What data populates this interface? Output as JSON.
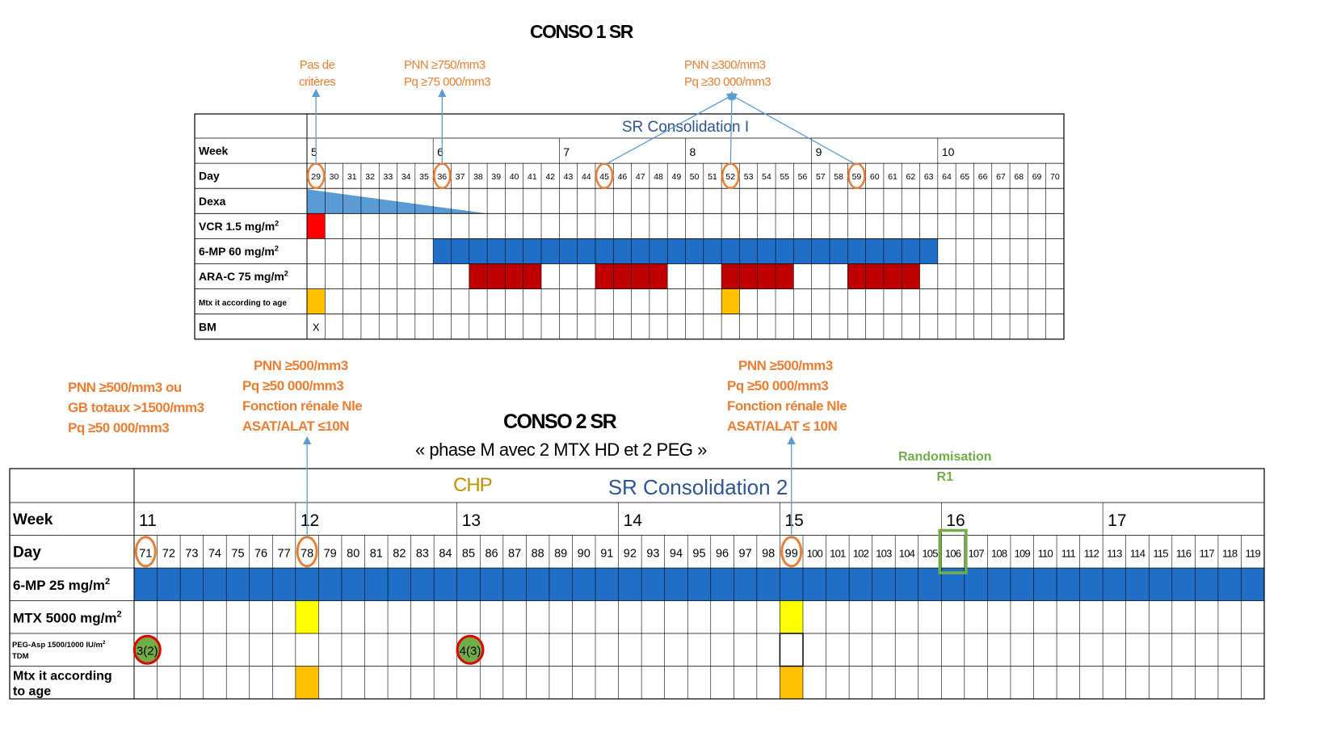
{
  "conso1": {
    "title": "CONSO 1 SR",
    "phase_label": "SR Consolidation I",
    "notes": [
      {
        "lines": [
          "Pas de",
          "critères"
        ]
      },
      {
        "lines": [
          "PNN ≥750/mm3",
          "Pq ≥75 000/mm3"
        ]
      },
      {
        "lines": [
          "PNN ≥300/mm3",
          "Pq ≥30 000/mm3"
        ]
      }
    ],
    "row_labels": [
      "Week",
      "Day",
      "Dexa",
      "VCR 1.5 mg/m²",
      "6-MP 60 mg/m²",
      "ARA-C 75 mg/m²",
      "Mtx it according to age",
      "BM"
    ],
    "weeks": [
      {
        "label": "5",
        "day": 29
      },
      {
        "label": "6",
        "day": 36
      },
      {
        "label": "7",
        "day": 43
      },
      {
        "label": "8",
        "day": 50
      },
      {
        "label": "9",
        "day": 57
      },
      {
        "label": "10",
        "day": 64
      }
    ],
    "day_start": 29,
    "day_end": 70,
    "circled_days": [
      29,
      36,
      45,
      52,
      59
    ],
    "bm_mark": "X",
    "bm_day": 29,
    "colors": {
      "dexa": "#5B9BD5",
      "vcr": "#FF0000",
      "mp": "#1F6FC8",
      "arac": "#C00000",
      "mtx": "#FFC000",
      "circle": "#ED7D31",
      "arrow": "#5B9BD5",
      "phase": "#2E5496"
    },
    "bars": {
      "dexa_days": [
        29,
        38
      ],
      "vcr_days": [
        29
      ],
      "mp_days": [
        36,
        63
      ],
      "arac_days": [
        38,
        39,
        40,
        41,
        45,
        46,
        47,
        48,
        52,
        53,
        54,
        55,
        59,
        60,
        61,
        62
      ],
      "mtx_days": [
        29,
        52
      ]
    }
  },
  "conso2": {
    "title": "CONSO 2 SR",
    "subtitle": "« phase M avec 2 MTX HD et 2 PEG »",
    "chp": "CHP",
    "phase_label": "SR Consolidation 2",
    "notes": [
      {
        "lines": [
          "PNN ≥500/mm3 ou",
          "GB totaux >1500/mm3",
          "Pq ≥50 000/mm3"
        ]
      },
      {
        "lines": [
          "PNN ≥500/mm3",
          "Pq ≥50 000/mm3",
          "Fonction rénale Nle",
          "ASAT/ALAT ≤10N"
        ]
      },
      {
        "lines": [
          "PNN ≥500/mm3",
          "Pq ≥50 000/mm3",
          "Fonction rénale Nle",
          "ASAT/ALAT ≤ 10N"
        ]
      }
    ],
    "randomisation": [
      "Randomisation",
      "R1"
    ],
    "row_labels": [
      "Week",
      "Day",
      "6-MP 25 mg/m²",
      "MTX 5000 mg/m²",
      "PEG-Asp 1500/1000 IU/m² TDM",
      "Mtx it according to age"
    ],
    "weeks": [
      {
        "label": "11",
        "day": 71
      },
      {
        "label": "12",
        "day": 78
      },
      {
        "label": "13",
        "day": 85
      },
      {
        "label": "14",
        "day": 92
      },
      {
        "label": "15",
        "day": 99
      },
      {
        "label": "16",
        "day": 106
      },
      {
        "label": "17",
        "day": 113
      }
    ],
    "day_start": 71,
    "day_end": 119,
    "circled_days": [
      71,
      78,
      99
    ],
    "boxed_day": 106,
    "peg_marks": [
      {
        "day": 71,
        "text": "3(2)"
      },
      {
        "day": 85,
        "text": "4(3)"
      }
    ],
    "colors": {
      "mp": "#1F6FC8",
      "mtx_hd": "#FFFF00",
      "mtx_it": "#FFC000",
      "peg": "#70AD47",
      "peg_ring": "#E00000",
      "circle": "#ED7D31",
      "box": "#70AD47",
      "arrow": "#5B9BD5",
      "phase": "#2E5496"
    },
    "bars": {
      "mp_days": [
        71,
        119
      ],
      "mtx_hd_days": [
        78,
        99
      ],
      "mtx_it_days": [
        78,
        99
      ]
    }
  }
}
